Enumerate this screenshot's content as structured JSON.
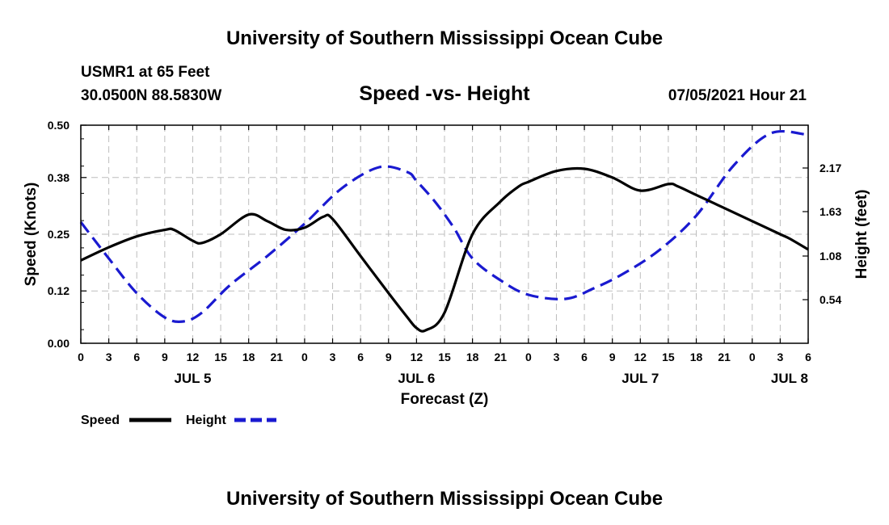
{
  "header": {
    "title": "University of Southern Mississippi Ocean Cube",
    "station": "USMR1 at 65 Feet",
    "coords": "30.0500N  88.5830W",
    "subtitle": "Speed -vs- Height",
    "datetime": "07/05/2021 Hour 21"
  },
  "footer": {
    "title": "University of Southern Mississippi Ocean Cube"
  },
  "colors": {
    "speed": "#000000",
    "height": "#1a1ad0",
    "grid": "#bdbdbd"
  },
  "chart_data": {
    "type": "line",
    "title": "Speed -vs- Height",
    "xlabel": "Forecast (Z)",
    "ylabel": "Speed (Knots)",
    "y2label": "Height (feet)",
    "x_unit": "hours from JUL 5 00Z",
    "xlim": [
      0,
      78
    ],
    "ylim": [
      0,
      0.5
    ],
    "y2lim": [
      0,
      2.7
    ],
    "x_ticks": [
      0,
      3,
      6,
      9,
      12,
      15,
      18,
      21,
      24,
      27,
      30,
      33,
      36,
      39,
      42,
      45,
      48,
      51,
      54,
      57,
      60,
      63,
      66,
      69,
      72,
      75,
      78
    ],
    "x_tick_labels": [
      "0",
      "3",
      "6",
      "9",
      "12",
      "15",
      "18",
      "21",
      "0",
      "3",
      "6",
      "9",
      "12",
      "15",
      "18",
      "21",
      "0",
      "3",
      "6",
      "9",
      "12",
      "15",
      "18",
      "21",
      "0",
      "3",
      "6"
    ],
    "y_ticks": [
      0.0,
      0.12,
      0.25,
      0.38,
      0.5
    ],
    "y_tick_labels": [
      "0.00",
      "0.12",
      "0.25",
      "0.38",
      "0.50"
    ],
    "y2_ticks": [
      0.54,
      1.08,
      1.63,
      2.17
    ],
    "y2_tick_labels": [
      "0.54",
      "1.08",
      "1.63",
      "2.17"
    ],
    "day_labels": [
      {
        "x": 12,
        "label": "JUL 5"
      },
      {
        "x": 36,
        "label": "JUL 6"
      },
      {
        "x": 60,
        "label": "JUL 7"
      },
      {
        "x": 76,
        "label": "JUL 8"
      }
    ],
    "grid": true,
    "series": [
      {
        "name": "Speed",
        "axis": "left",
        "style": "solid",
        "x": [
          0,
          3,
          6,
          9,
          10,
          12,
          13,
          15,
          18,
          20,
          22,
          24,
          26,
          27,
          30,
          33,
          35,
          36,
          37,
          39,
          42,
          45,
          47,
          48,
          51,
          54,
          57,
          60,
          63,
          64,
          66,
          69,
          72,
          75,
          76,
          78
        ],
        "y": [
          0.19,
          0.22,
          0.245,
          0.26,
          0.26,
          0.235,
          0.23,
          0.25,
          0.295,
          0.28,
          0.26,
          0.265,
          0.29,
          0.285,
          0.2,
          0.115,
          0.06,
          0.035,
          0.03,
          0.07,
          0.25,
          0.325,
          0.36,
          0.37,
          0.395,
          0.4,
          0.38,
          0.35,
          0.365,
          0.36,
          0.34,
          0.31,
          0.28,
          0.25,
          0.24,
          0.215
        ]
      },
      {
        "name": "Height",
        "axis": "right",
        "style": "dashed",
        "x": [
          0,
          3,
          6,
          9,
          11,
          13,
          16,
          20,
          24,
          28,
          32,
          35,
          36,
          38,
          40,
          42,
          45,
          48,
          52,
          55,
          58,
          62,
          66,
          70,
          74,
          78
        ],
        "y": [
          1.5,
          1.05,
          0.62,
          0.32,
          0.27,
          0.38,
          0.72,
          1.08,
          1.48,
          1.92,
          2.18,
          2.12,
          2.01,
          1.75,
          1.43,
          1.05,
          0.78,
          0.6,
          0.55,
          0.68,
          0.85,
          1.15,
          1.58,
          2.2,
          2.6,
          2.58
        ]
      }
    ]
  },
  "legend": {
    "speed_label": "Speed",
    "height_label": "Height"
  }
}
